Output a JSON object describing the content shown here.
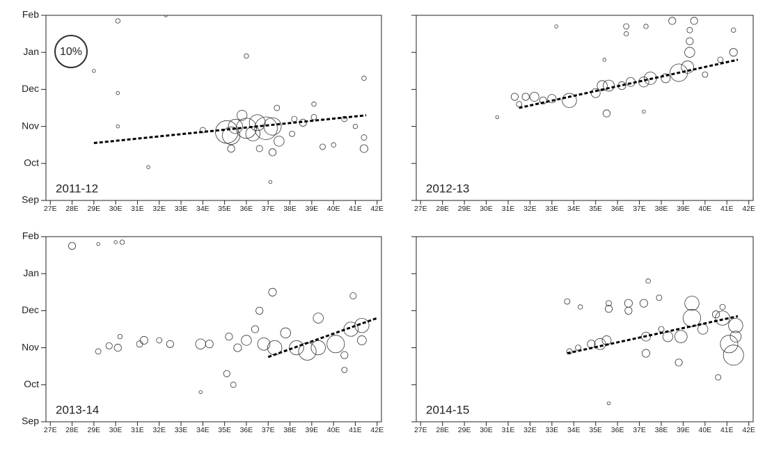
{
  "chart_data": [
    {
      "type": "scatter",
      "title": "2011-12",
      "marker_color": "#333333",
      "trend_color": "#000000",
      "size_legend": {
        "label": "10%",
        "value": 10
      },
      "x": [
        34,
        35.1,
        35.3,
        35.5,
        35.8,
        36,
        36.3,
        36.5,
        36.9,
        37.2,
        37.5,
        37.2,
        37.4,
        38.2,
        38.6,
        39.1,
        39.5,
        40,
        40.5,
        41,
        41.4,
        41.4,
        41.4,
        30.1,
        32.3,
        36,
        29,
        30.1,
        30.1,
        31.5,
        37.1,
        39.1,
        38.1,
        36.6,
        35.3
      ],
      "y": [
        10.9,
        10.85,
        10.75,
        11.0,
        11.3,
        10.95,
        10.8,
        11.1,
        10.95,
        11.0,
        10.6,
        10.3,
        11.5,
        11.2,
        11.1,
        11.25,
        10.45,
        10.5,
        11.2,
        11.0,
        10.4,
        10.7,
        12.3,
        13.85,
        14,
        12.9,
        12.5,
        11.0,
        11.9,
        9.9,
        9.5,
        11.6,
        10.8,
        10.4,
        10.4
      ],
      "sizes": [
        0.3,
        5,
        3,
        2,
        1,
        4,
        2,
        2.5,
        5,
        3,
        1,
        0.5,
        0.3,
        0.3,
        0.5,
        0.3,
        0.3,
        0.2,
        0.3,
        0.2,
        0.6,
        0.3,
        0.2,
        0.2,
        0.1,
        0.2,
        0.1,
        0.1,
        0.1,
        0.1,
        0.1,
        0.2,
        0.3,
        0.4,
        0.5
      ],
      "trend": {
        "x": [
          29,
          41.5
        ],
        "y": [
          10.55,
          11.3
        ]
      },
      "xlim": [
        26.8,
        42.2
      ],
      "ylim": [
        9,
        14
      ],
      "xticks": [
        {
          "value": 27,
          "label": "27E"
        },
        {
          "value": 28,
          "label": "28E"
        },
        {
          "value": 29,
          "label": "29E"
        },
        {
          "value": 30,
          "label": "30E"
        },
        {
          "value": 31,
          "label": "31E"
        },
        {
          "value": 32,
          "label": "32E"
        },
        {
          "value": 33,
          "label": "33E"
        },
        {
          "value": 34,
          "label": "34E"
        },
        {
          "value": 35,
          "label": "35E"
        },
        {
          "value": 36,
          "label": "36E"
        },
        {
          "value": 37,
          "label": "37E"
        },
        {
          "value": 38,
          "label": "38E"
        },
        {
          "value": 39,
          "label": "39E"
        },
        {
          "value": 40,
          "label": "40E"
        },
        {
          "value": 41,
          "label": "41E"
        },
        {
          "value": 42,
          "label": "42E"
        }
      ],
      "yticks": [
        {
          "value": 9,
          "label": "Sep"
        },
        {
          "value": 10,
          "label": "Oct"
        },
        {
          "value": 11,
          "label": "Nov"
        },
        {
          "value": 12,
          "label": "Dec"
        },
        {
          "value": 13,
          "label": "Jan"
        },
        {
          "value": 14,
          "label": "Feb"
        }
      ]
    },
    {
      "type": "scatter",
      "title": "2012-13",
      "marker_color": "#333333",
      "trend_color": "#000000",
      "x": [
        31.3,
        31.5,
        31.8,
        32.2,
        32.6,
        33.0,
        33.8,
        35.0,
        35.3,
        35.6,
        35.5,
        36.2,
        36.6,
        37.2,
        37.5,
        38.2,
        38.8,
        39.2,
        39.3,
        39.3,
        39.3,
        40.7,
        41.3,
        41.3,
        38.5,
        39.5,
        37.3,
        36.4,
        36.4,
        33.2,
        30.5,
        35.4,
        37.2,
        40
      ],
      "y": [
        11.8,
        11.6,
        11.8,
        11.8,
        11.7,
        11.75,
        11.7,
        11.9,
        12.1,
        12.1,
        11.35,
        12.1,
        12.2,
        12.2,
        12.3,
        12.3,
        12.45,
        12.6,
        13.0,
        13.3,
        13.6,
        12.8,
        13.0,
        13.6,
        13.85,
        13.85,
        13.7,
        13.7,
        13.5,
        13.7,
        11.25,
        12.8,
        11.4,
        12.4
      ],
      "sizes": [
        0.5,
        0.3,
        0.5,
        0.8,
        0.5,
        0.7,
        2,
        0.8,
        1,
        1.2,
        0.5,
        0.6,
        0.8,
        1,
        1.5,
        0.8,
        3,
        1.5,
        1,
        0.5,
        0.3,
        0.3,
        0.6,
        0.2,
        0.5,
        0.5,
        0.2,
        0.3,
        0.2,
        0.1,
        0.1,
        0.1,
        0.1,
        0.3
      ],
      "trend": {
        "x": [
          31.5,
          41.5
        ],
        "y": [
          11.5,
          12.8
        ]
      },
      "xlim": [
        26.8,
        42.2
      ],
      "ylim": [
        9,
        14
      ],
      "xticks": [
        {
          "value": 27,
          "label": "27E"
        },
        {
          "value": 28,
          "label": "28E"
        },
        {
          "value": 29,
          "label": "29E"
        },
        {
          "value": 30,
          "label": "30E"
        },
        {
          "value": 31,
          "label": "31E"
        },
        {
          "value": 32,
          "label": "32E"
        },
        {
          "value": 33,
          "label": "33E"
        },
        {
          "value": 34,
          "label": "34E"
        },
        {
          "value": 35,
          "label": "35E"
        },
        {
          "value": 36,
          "label": "36E"
        },
        {
          "value": 37,
          "label": "37E"
        },
        {
          "value": 38,
          "label": "38E"
        },
        {
          "value": 39,
          "label": "39E"
        },
        {
          "value": 40,
          "label": "40E"
        },
        {
          "value": 41,
          "label": "41E"
        },
        {
          "value": 42,
          "label": "42E"
        }
      ]
    },
    {
      "type": "scatter",
      "title": "2013-14",
      "marker_color": "#333333",
      "trend_color": "#000000",
      "x": [
        28,
        29.2,
        30,
        30.3,
        29.2,
        29.7,
        30.1,
        30.2,
        31.1,
        31.3,
        32.0,
        32.5,
        33.9,
        34.3,
        35.2,
        35.6,
        36,
        36.4,
        36.8,
        37.3,
        37.8,
        38.3,
        38.8,
        39.3,
        39.3,
        40.1,
        40.8,
        41.3,
        41.3,
        40.5,
        40.5,
        40.9,
        37.2,
        36.6,
        35.4,
        35.1,
        33.9
      ],
      "y": [
        13.75,
        13.8,
        13.85,
        13.85,
        10.9,
        11.05,
        11.0,
        11.3,
        11.1,
        11.2,
        11.2,
        11.1,
        11.1,
        11.1,
        11.3,
        11.0,
        11.2,
        11.5,
        11.1,
        11.0,
        11.4,
        11.0,
        10.9,
        11.0,
        11.8,
        11.1,
        11.5,
        11.6,
        11.2,
        10.8,
        10.4,
        12.4,
        12.5,
        12.0,
        10.0,
        10.3,
        9.8
      ],
      "sizes": [
        0.5,
        0.1,
        0.1,
        0.2,
        0.3,
        0.4,
        0.5,
        0.2,
        0.4,
        0.6,
        0.3,
        0.5,
        1,
        0.6,
        0.5,
        0.6,
        1,
        0.5,
        1.5,
        2,
        1,
        2,
        3,
        2,
        1,
        3,
        2,
        2,
        0.8,
        0.5,
        0.3,
        0.4,
        0.6,
        0.5,
        0.3,
        0.4,
        0.1
      ],
      "trend": {
        "x": [
          37,
          42
        ],
        "y": [
          10.75,
          11.8
        ]
      },
      "xlim": [
        26.8,
        42.2
      ],
      "ylim": [
        9,
        14
      ],
      "xticks": [
        {
          "value": 27,
          "label": "27E"
        },
        {
          "value": 28,
          "label": "28E"
        },
        {
          "value": 29,
          "label": "29E"
        },
        {
          "value": 30,
          "label": "30E"
        },
        {
          "value": 31,
          "label": "31E"
        },
        {
          "value": 32,
          "label": "32E"
        },
        {
          "value": 33,
          "label": "33E"
        },
        {
          "value": 34,
          "label": "34E"
        },
        {
          "value": 35,
          "label": "35E"
        },
        {
          "value": 36,
          "label": "36E"
        },
        {
          "value": 37,
          "label": "37E"
        },
        {
          "value": 38,
          "label": "38E"
        },
        {
          "value": 39,
          "label": "39E"
        },
        {
          "value": 40,
          "label": "40E"
        },
        {
          "value": 41,
          "label": "41E"
        },
        {
          "value": 42,
          "label": "42E"
        }
      ],
      "yticks": [
        {
          "value": 9,
          "label": "Sep"
        },
        {
          "value": 10,
          "label": "Oct"
        },
        {
          "value": 11,
          "label": "Nov"
        },
        {
          "value": 12,
          "label": "Dec"
        },
        {
          "value": 13,
          "label": "Jan"
        },
        {
          "value": 14,
          "label": "Feb"
        }
      ]
    },
    {
      "type": "scatter",
      "title": "2014-15",
      "marker_color": "#333333",
      "trend_color": "#000000",
      "x": [
        33.8,
        34.2,
        34.8,
        35.2,
        35.5,
        35.6,
        35.6,
        36.5,
        36.5,
        37.2,
        37.3,
        37.3,
        37.4,
        38.0,
        38.3,
        38.8,
        38.9,
        39.4,
        39.4,
        39.9,
        40.5,
        40.8,
        41.1,
        41.3,
        41.4,
        41.4,
        40.6,
        40.8,
        35.6,
        33.7,
        34.3,
        37.9
      ],
      "y": [
        10.9,
        11.0,
        11.1,
        11.1,
        11.2,
        12.05,
        12.2,
        12.2,
        12.0,
        12.2,
        11.3,
        10.85,
        12.8,
        11.5,
        11.3,
        10.6,
        11.3,
        11.8,
        12.2,
        11.5,
        11.9,
        11.8,
        11.1,
        10.8,
        11.6,
        11.3,
        10.2,
        12.1,
        9.5,
        12.25,
        12.1,
        12.35
      ],
      "sizes": [
        0.3,
        0.3,
        0.6,
        1.2,
        0.8,
        0.5,
        0.3,
        0.6,
        0.5,
        0.6,
        0.8,
        0.6,
        0.2,
        0.3,
        1,
        0.5,
        1.5,
        3,
        2,
        1,
        0.5,
        2,
        3,
        4,
        2,
        1.2,
        0.3,
        0.3,
        0.1,
        0.3,
        0.2,
        0.3
      ],
      "trend": {
        "x": [
          33.7,
          41.5
        ],
        "y": [
          10.85,
          11.85
        ]
      },
      "xlim": [
        26.8,
        42.2
      ],
      "ylim": [
        9,
        14
      ],
      "xticks": [
        {
          "value": 27,
          "label": "27E"
        },
        {
          "value": 28,
          "label": "28E"
        },
        {
          "value": 29,
          "label": "29E"
        },
        {
          "value": 30,
          "label": "30E"
        },
        {
          "value": 31,
          "label": "31E"
        },
        {
          "value": 32,
          "label": "32E"
        },
        {
          "value": 33,
          "label": "33E"
        },
        {
          "value": 34,
          "label": "34E"
        },
        {
          "value": 35,
          "label": "35E"
        },
        {
          "value": 36,
          "label": "36E"
        },
        {
          "value": 37,
          "label": "37E"
        },
        {
          "value": 38,
          "label": "38E"
        },
        {
          "value": 39,
          "label": "39E"
        },
        {
          "value": 40,
          "label": "40E"
        },
        {
          "value": 41,
          "label": "41E"
        },
        {
          "value": 42,
          "label": "42E"
        }
      ]
    }
  ]
}
